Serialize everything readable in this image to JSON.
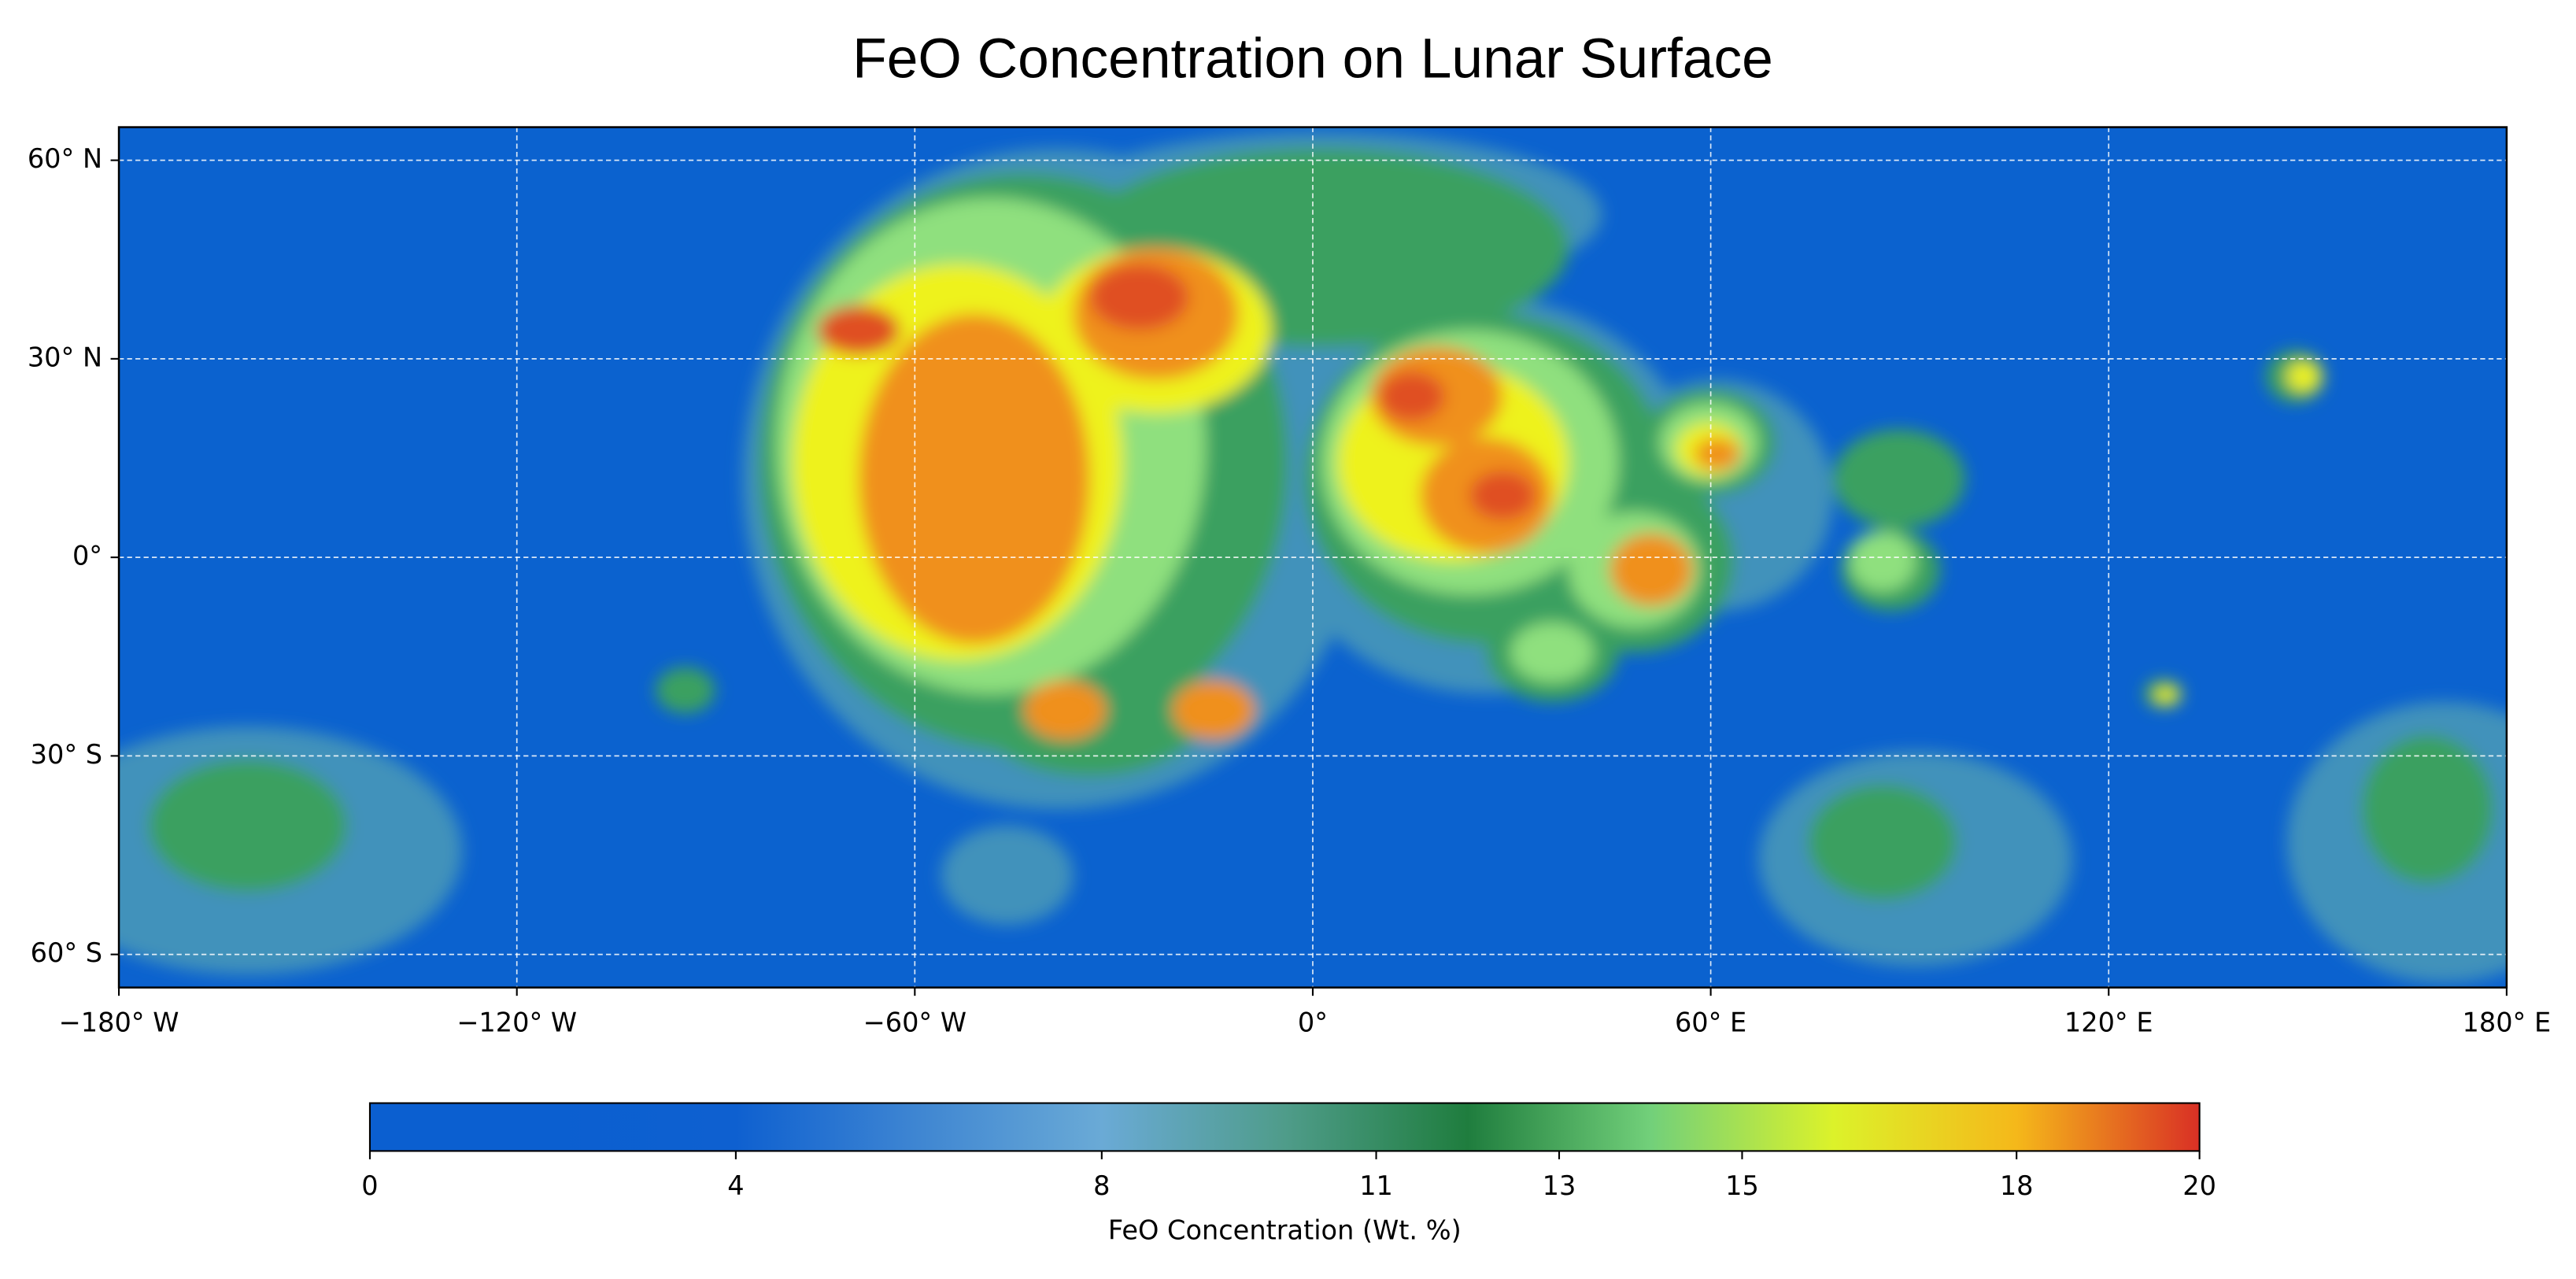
{
  "chart_data": {
    "type": "heatmap",
    "title": "FeO Concentration on Lunar Surface",
    "xlim": [
      -180,
      180
    ],
    "ylim": [
      -65,
      65
    ],
    "xticks": [
      {
        "value": -180,
        "label": "−180° W"
      },
      {
        "value": -120,
        "label": "−120° W"
      },
      {
        "value": -60,
        "label": "−60° W"
      },
      {
        "value": 0,
        "label": "0°"
      },
      {
        "value": 60,
        "label": "60° E"
      },
      {
        "value": 120,
        "label": "120° E"
      },
      {
        "value": 180,
        "label": "180° E"
      }
    ],
    "yticks": [
      {
        "value": 60,
        "label": "60° N"
      },
      {
        "value": 30,
        "label": "30° N"
      },
      {
        "value": 0,
        "label": "0°"
      },
      {
        "value": -30,
        "label": "30° S"
      },
      {
        "value": -60,
        "label": "60° S"
      }
    ],
    "grid": true,
    "colorbar": {
      "label": "FeO Concentration (Wt. %)",
      "lim": [
        0,
        20
      ],
      "ticks": [
        0,
        4,
        8,
        11,
        13,
        15,
        18,
        20
      ],
      "colormap": [
        "#0b5fd0",
        "#0b5fd0",
        "#0e60d0",
        "#3f86d2",
        "#6aaad6",
        "#4f9c8a",
        "#1f7d3e",
        "#72d07a",
        "#dcf22a",
        "#f5b81a",
        "#d93025"
      ]
    }
  }
}
